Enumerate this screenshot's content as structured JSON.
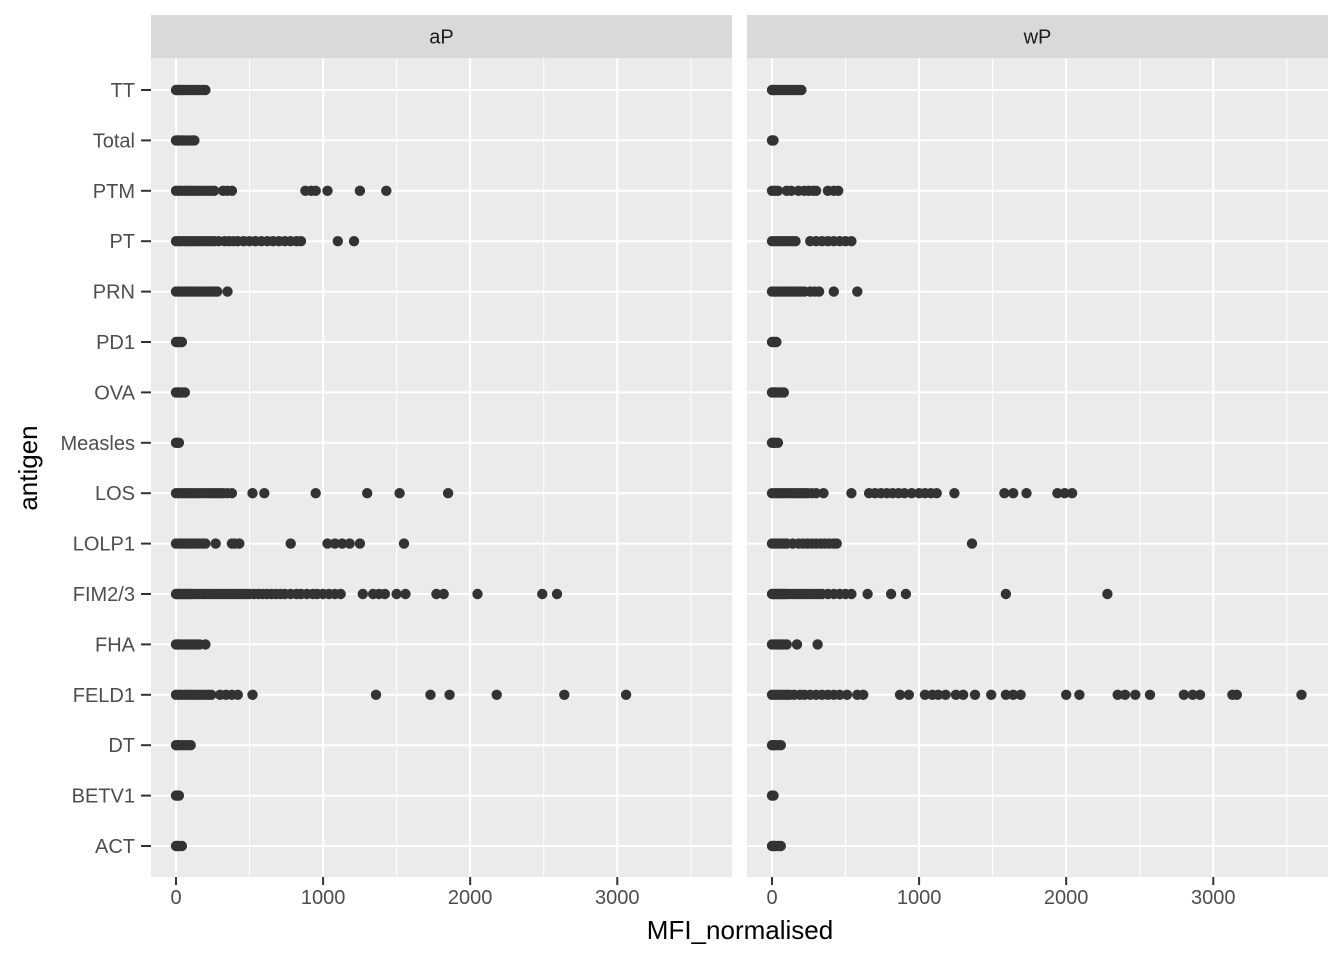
{
  "chart_data": {
    "type": "scatter",
    "title": "",
    "xlabel": "MFI_normalised",
    "ylabel": "antigen",
    "xlim": [
      -170,
      3780
    ],
    "x_ticks": [
      0,
      1000,
      2000,
      3000
    ],
    "x_tick_labels": [
      "0",
      "1000",
      "2000",
      "3000"
    ],
    "categories": [
      "TT",
      "Total",
      "PTM",
      "PT",
      "PRN",
      "PD1",
      "OVA",
      "Measles",
      "LOS",
      "LOLP1",
      "FIM2/3",
      "FHA",
      "FELD1",
      "DT",
      "BETV1",
      "ACT"
    ],
    "grid": true,
    "legend": "none",
    "point_color": "#333333",
    "panel_background": "#ebebeb",
    "strip_background": "#d9d9d9",
    "panels": [
      {
        "name": "aP",
        "points": {
          "TT": [
            0,
            10,
            20,
            30,
            45,
            60,
            80,
            100,
            120,
            140,
            160,
            180,
            200
          ],
          "Total": [
            0,
            10,
            20,
            35,
            50,
            70,
            90,
            110,
            125
          ],
          "PTM": [
            0,
            20,
            40,
            60,
            80,
            100,
            120,
            140,
            160,
            180,
            200,
            220,
            240,
            260,
            320,
            350,
            380,
            880,
            920,
            950,
            1030,
            1250,
            1430
          ],
          "PT": [
            0,
            20,
            40,
            60,
            80,
            100,
            120,
            140,
            160,
            180,
            200,
            220,
            240,
            260,
            290,
            330,
            360,
            390,
            420,
            460,
            500,
            540,
            580,
            620,
            660,
            700,
            740,
            780,
            820,
            850,
            1100,
            1210
          ],
          "PRN": [
            0,
            20,
            40,
            60,
            80,
            100,
            120,
            140,
            160,
            180,
            200,
            220,
            240,
            260,
            280,
            350
          ],
          "PD1": [
            0,
            10,
            20,
            30,
            40
          ],
          "OVA": [
            0,
            10,
            20,
            40,
            60
          ],
          "Measles": [
            0,
            10,
            20
          ],
          "LOS": [
            0,
            20,
            40,
            60,
            80,
            100,
            120,
            140,
            160,
            180,
            200,
            220,
            240,
            260,
            280,
            300,
            320,
            350,
            380,
            520,
            600,
            950,
            1300,
            1520,
            1850
          ],
          "LOLP1": [
            0,
            20,
            40,
            60,
            80,
            100,
            120,
            140,
            160,
            180,
            200,
            270,
            380,
            400,
            430,
            780,
            1030,
            1080,
            1130,
            1180,
            1250,
            1550
          ],
          "FIM2/3": [
            0,
            10,
            20,
            30,
            40,
            50,
            60,
            70,
            80,
            90,
            100,
            120,
            140,
            160,
            180,
            200,
            220,
            240,
            260,
            280,
            300,
            320,
            340,
            360,
            380,
            400,
            420,
            440,
            460,
            480,
            500,
            530,
            560,
            590,
            620,
            650,
            680,
            710,
            740,
            780,
            820,
            850,
            890,
            930,
            960,
            1000,
            1040,
            1080,
            1120,
            1270,
            1340,
            1380,
            1420,
            1500,
            1560,
            1770,
            1820,
            2050,
            2490,
            2590
          ],
          "FHA": [
            0,
            10,
            20,
            40,
            60,
            80,
            100,
            120,
            140,
            160,
            200
          ],
          "FELD1": [
            0,
            20,
            40,
            60,
            80,
            100,
            120,
            140,
            160,
            180,
            200,
            220,
            240,
            300,
            340,
            380,
            420,
            520,
            1360,
            1730,
            1860,
            2180,
            2640,
            3060
          ],
          "DT": [
            0,
            10,
            20,
            40,
            60,
            80,
            100
          ],
          "BETV1": [
            0,
            10,
            20
          ],
          "ACT": [
            0,
            10,
            20,
            40
          ]
        }
      },
      {
        "name": "wP",
        "points": {
          "TT": [
            0,
            10,
            20,
            40,
            60,
            80,
            100,
            120,
            140,
            160,
            180,
            200
          ],
          "Total": [
            0,
            5,
            10
          ],
          "PTM": [
            0,
            20,
            40,
            100,
            130,
            180,
            220,
            250,
            280,
            300,
            380,
            420,
            450
          ],
          "PT": [
            0,
            20,
            40,
            60,
            80,
            100,
            120,
            140,
            160,
            260,
            300,
            340,
            380,
            420,
            460,
            500,
            540
          ],
          "PRN": [
            0,
            20,
            40,
            60,
            80,
            100,
            120,
            140,
            160,
            180,
            200,
            220,
            260,
            290,
            320,
            420,
            580
          ],
          "PD1": [
            0,
            10,
            20,
            30
          ],
          "OVA": [
            0,
            10,
            20,
            40,
            60,
            80
          ],
          "Measles": [
            0,
            10,
            20,
            40
          ],
          "LOS": [
            0,
            20,
            40,
            60,
            80,
            100,
            120,
            140,
            160,
            180,
            200,
            220,
            240,
            270,
            300,
            350,
            540,
            660,
            700,
            740,
            780,
            820,
            860,
            900,
            950,
            1000,
            1040,
            1080,
            1120,
            1240,
            1580,
            1640,
            1730,
            1940,
            1990,
            2040
          ],
          "LOLP1": [
            0,
            20,
            40,
            60,
            80,
            100,
            140,
            180,
            210,
            240,
            270,
            300,
            330,
            360,
            390,
            420,
            440,
            1360
          ],
          "FIM2/3": [
            0,
            10,
            20,
            30,
            40,
            50,
            60,
            70,
            80,
            90,
            100,
            120,
            140,
            160,
            180,
            200,
            220,
            240,
            260,
            280,
            300,
            320,
            340,
            380,
            420,
            460,
            500,
            540,
            650,
            810,
            910,
            1590,
            2280
          ],
          "FHA": [
            0,
            20,
            40,
            60,
            80,
            100,
            170,
            310
          ],
          "FELD1": [
            0,
            20,
            40,
            60,
            80,
            100,
            120,
            150,
            190,
            220,
            260,
            300,
            340,
            380,
            420,
            460,
            510,
            580,
            620,
            870,
            930,
            1040,
            1090,
            1130,
            1180,
            1250,
            1300,
            1380,
            1490,
            1590,
            1640,
            1690,
            2000,
            2090,
            2350,
            2400,
            2470,
            2570,
            2800,
            2860,
            2910,
            3130,
            3160,
            3600
          ],
          "DT": [
            0,
            10,
            20,
            40,
            60
          ],
          "BETV1": [
            0,
            10
          ],
          "ACT": [
            0,
            10,
            20,
            40,
            60
          ]
        }
      }
    ]
  }
}
